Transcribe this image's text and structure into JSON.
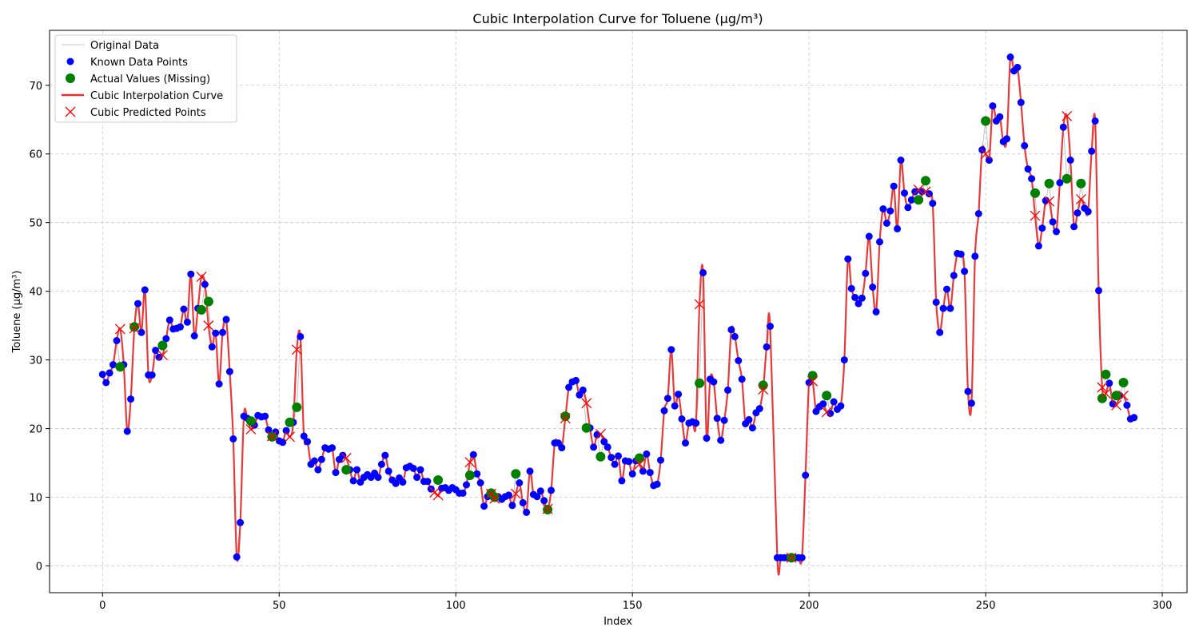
{
  "chart_data": {
    "type": "line",
    "title": "Cubic Interpolation Curve for Toluene (µg/m³)",
    "xlabel": "Index",
    "ylabel": "Toluene (µg/m³)",
    "xlim": [
      -15,
      307
    ],
    "ylim": [
      -3.9,
      78
    ],
    "xticks": [
      0,
      50,
      100,
      150,
      200,
      250,
      300
    ],
    "yticks": [
      0,
      10,
      20,
      30,
      40,
      50,
      60,
      70
    ],
    "grid": true,
    "legend_position": "top-left",
    "colors": {
      "original": "#c0c0c0",
      "known": "#0000ff",
      "actual": "#008000",
      "curve": "#e83030",
      "predicted": "#ff0000"
    },
    "legend": [
      "Original Data",
      "Known Data Points",
      "Actual Values (Missing)",
      "Cubic Interpolation Curve",
      "Cubic Predicted Points"
    ],
    "series": [
      {
        "name": "Known Data Points",
        "x": [
          0,
          1,
          2,
          3,
          4,
          6,
          7,
          8,
          10,
          11,
          12,
          13,
          14,
          15,
          16,
          18,
          19,
          20,
          21,
          22,
          23,
          24,
          25,
          26,
          27,
          29,
          31,
          32,
          33,
          34,
          35,
          36,
          37,
          38,
          39,
          40,
          41,
          43,
          44,
          45,
          46,
          47,
          49,
          50,
          51,
          52,
          54,
          56,
          57,
          58,
          59,
          60,
          61,
          62,
          63,
          64,
          65,
          66,
          67,
          68,
          70,
          71,
          72,
          73,
          74,
          75,
          76,
          77,
          78,
          79,
          80,
          81,
          82,
          83,
          84,
          85,
          86,
          87,
          88,
          89,
          90,
          91,
          92,
          93,
          96,
          97,
          98,
          99,
          100,
          101,
          102,
          103,
          105,
          106,
          107,
          108,
          109,
          112,
          113,
          114,
          115,
          116,
          118,
          119,
          120,
          121,
          122,
          123,
          124,
          125,
          127,
          128,
          129,
          130,
          132,
          133,
          134,
          135,
          136,
          138,
          139,
          140,
          142,
          143,
          144,
          145,
          146,
          147,
          148,
          149,
          150,
          151,
          153,
          154,
          155,
          156,
          157,
          158,
          159,
          160,
          161,
          162,
          163,
          164,
          165,
          166,
          167,
          168,
          170,
          171,
          172,
          173,
          174,
          175,
          176,
          177,
          178,
          179,
          180,
          181,
          182,
          183,
          184,
          185,
          186,
          188,
          189,
          191,
          192,
          193,
          194,
          196,
          197,
          198,
          199,
          200,
          202,
          203,
          204,
          206,
          207,
          208,
          209,
          210,
          211,
          212,
          213,
          214,
          215,
          216,
          217,
          218,
          219,
          220,
          221,
          222,
          223,
          224,
          225,
          226,
          227,
          228,
          229,
          230,
          232,
          234,
          235,
          236,
          237,
          238,
          239,
          240,
          241,
          242,
          243,
          244,
          245,
          246,
          247,
          248,
          249,
          251,
          252,
          253,
          254,
          255,
          256,
          257,
          258,
          259,
          260,
          261,
          262,
          263,
          265,
          266,
          267,
          269,
          270,
          271,
          272,
          274,
          275,
          276,
          278,
          279,
          280,
          281,
          282,
          285,
          286,
          288,
          290,
          291,
          292
        ],
        "y": [
          27.9,
          26.7,
          28.1,
          29.3,
          32.8,
          29.3,
          19.6,
          24.3,
          38.2,
          34.0,
          40.2,
          27.8,
          27.8,
          31.4,
          30.4,
          33.1,
          35.8,
          34.5,
          34.6,
          34.8,
          37.4,
          35.5,
          42.5,
          33.5,
          37.5,
          41.0,
          31.9,
          33.9,
          26.5,
          34.0,
          35.9,
          28.3,
          18.5,
          1.3,
          6.3,
          21.8,
          21.5,
          20.5,
          21.9,
          21.7,
          21.8,
          19.8,
          19.5,
          18.2,
          18.0,
          19.7,
          20.9,
          33.4,
          18.9,
          18.1,
          14.8,
          15.3,
          14.0,
          15.5,
          17.2,
          17.0,
          17.2,
          13.6,
          15.5,
          16.1,
          14.0,
          12.4,
          14.0,
          12.2,
          12.9,
          13.3,
          12.9,
          13.5,
          12.9,
          14.8,
          16.1,
          13.8,
          12.5,
          12.0,
          12.8,
          12.2,
          14.3,
          14.5,
          14.2,
          12.9,
          14.0,
          12.3,
          12.3,
          11.2,
          11.3,
          11.4,
          11.0,
          11.4,
          11.1,
          10.6,
          10.6,
          11.8,
          16.2,
          13.4,
          12.1,
          8.7,
          10.1,
          10.1,
          9.7,
          10.1,
          10.3,
          8.8,
          12.1,
          9.2,
          7.8,
          13.8,
          10.4,
          10.1,
          10.9,
          9.5,
          11.0,
          17.9,
          17.9,
          17.2,
          26.0,
          26.8,
          27.0,
          24.9,
          25.6,
          20.1,
          17.3,
          19.1,
          18.1,
          17.3,
          15.8,
          14.8,
          16.0,
          12.4,
          15.3,
          15.2,
          13.4,
          15.3,
          13.8,
          16.3,
          13.6,
          11.7,
          11.9,
          15.4,
          22.6,
          24.4,
          31.5,
          23.3,
          25.0,
          21.4,
          17.9,
          20.8,
          21.0,
          20.8,
          42.7,
          18.6,
          27.2,
          26.8,
          21.5,
          18.3,
          21.2,
          25.6,
          34.4,
          33.4,
          29.9,
          27.2,
          20.7,
          21.3,
          20.1,
          22.3,
          22.9,
          31.9,
          34.9,
          1.2,
          1.2,
          1.2,
          1.2,
          1.2,
          1.2,
          1.2,
          13.2,
          26.7,
          22.5,
          23.2,
          23.6,
          22.2,
          23.9,
          22.8,
          23.3,
          30.0,
          44.7,
          40.4,
          39.1,
          38.2,
          39.0,
          42.6,
          48.0,
          40.6,
          37.0,
          47.2,
          52.0,
          49.9,
          51.7,
          55.3,
          49.1,
          59.1,
          54.3,
          52.2,
          53.3,
          54.5,
          54.5,
          54.2,
          52.8,
          38.4,
          34.0,
          37.5,
          40.3,
          37.5,
          42.3,
          45.5,
          45.4,
          42.9,
          25.4,
          23.7,
          45.1,
          51.3,
          60.6,
          59.1,
          67.0,
          64.8,
          65.4,
          61.8,
          62.2,
          74.1,
          72.1,
          72.6,
          67.5,
          61.2,
          57.8,
          56.4,
          46.6,
          49.2,
          53.2,
          50.1,
          48.7,
          55.8,
          63.9,
          59.1,
          49.4,
          51.4,
          52.1,
          51.6,
          60.4,
          64.8,
          40.1,
          26.6,
          23.6,
          24.8,
          23.4,
          21.4,
          21.6
        ]
      },
      {
        "name": "Actual Values (Missing)",
        "x": [
          5,
          9,
          17,
          28,
          30,
          42,
          48,
          53,
          55,
          69,
          95,
          104,
          110,
          111,
          117,
          126,
          131,
          137,
          141,
          152,
          169,
          187,
          195,
          201,
          205,
          231,
          233,
          250,
          264,
          268,
          273,
          277,
          283,
          284,
          287,
          289
        ],
        "y": [
          29.0,
          34.8,
          32.1,
          37.3,
          38.5,
          21.1,
          18.8,
          20.9,
          23.1,
          14.0,
          12.5,
          13.2,
          10.6,
          10.0,
          13.4,
          8.2,
          21.8,
          20.1,
          15.9,
          15.7,
          26.6,
          26.3,
          1.2,
          27.7,
          24.8,
          53.3,
          56.1,
          64.8,
          54.3,
          55.7,
          56.4,
          55.7,
          24.4,
          27.9,
          24.8,
          26.7
        ]
      },
      {
        "name": "Cubic Predicted Points",
        "x": [
          5,
          9,
          17,
          28,
          30,
          42,
          48,
          53,
          55,
          69,
          94,
          95,
          104,
          110,
          111,
          117,
          126,
          131,
          137,
          141,
          152,
          169,
          187,
          195,
          201,
          205,
          231,
          233,
          250,
          264,
          268,
          273,
          277,
          283,
          284,
          287,
          289
        ],
        "y": [
          34.5,
          34.6,
          30.7,
          42.1,
          35.0,
          19.9,
          18.9,
          18.8,
          31.5,
          15.7,
          10.7,
          10.3,
          15.1,
          10.5,
          9.8,
          10.5,
          8.3,
          21.5,
          23.7,
          19.2,
          14.8,
          38.1,
          25.7,
          1.2,
          26.9,
          22.4,
          54.8,
          54.5,
          60.0,
          51.0,
          53.1,
          65.5,
          53.4,
          26.0,
          25.1,
          23.4,
          24.8
        ]
      }
    ]
  }
}
